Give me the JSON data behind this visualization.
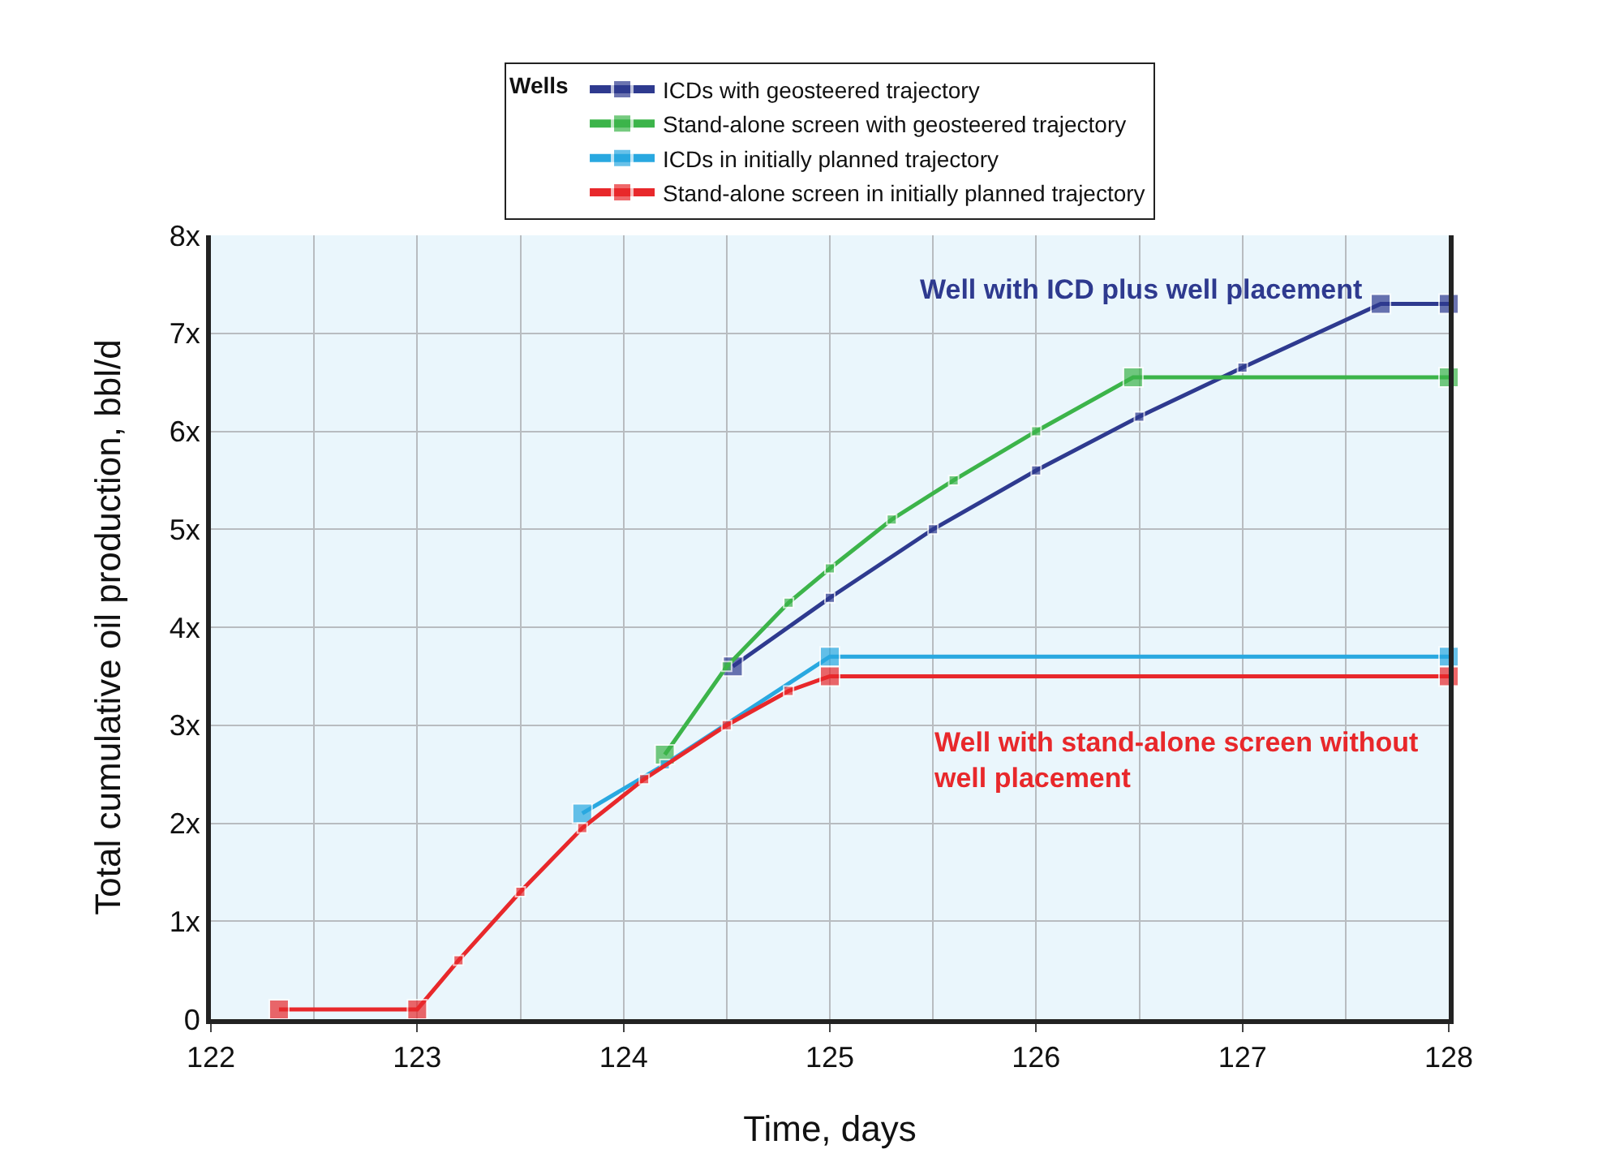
{
  "chart_data": {
    "type": "line",
    "xlabel": "Time, days",
    "ylabel": "Total cumulative oil production, bbl/d",
    "legend_title": "Wells",
    "series": [
      {
        "name": "ICDs with geosteered trajectory",
        "color": "#2e3a8f",
        "x": [
          124.53,
          125,
          125.5,
          126,
          126.5,
          127,
          127.67,
          128
        ],
        "values": [
          3.6,
          4.3,
          5.0,
          5.6,
          6.15,
          6.65,
          7.3,
          7.3
        ]
      },
      {
        "name": "Stand-alone screen with geosteered trajectory",
        "color": "#3cb44a",
        "x": [
          124.2,
          124.5,
          124.8,
          125,
          125.3,
          125.6,
          126,
          126.47,
          128
        ],
        "values": [
          2.7,
          3.6,
          4.25,
          4.6,
          5.1,
          5.5,
          6.0,
          6.55,
          6.55
        ]
      },
      {
        "name": "ICDs in initially planned trajectory",
        "color": "#29a8e0",
        "x": [
          123.8,
          124.2,
          125,
          128
        ],
        "values": [
          2.1,
          2.6,
          3.7,
          3.7
        ]
      },
      {
        "name": "Stand-alone screen in initially planned trajectory",
        "color": "#e8282b",
        "x": [
          122.33,
          123,
          123.2,
          123.5,
          123.8,
          124.1,
          124.5,
          124.8,
          125,
          128
        ],
        "values": [
          0.1,
          0.1,
          0.6,
          1.3,
          1.95,
          2.45,
          3.0,
          3.35,
          3.5,
          3.5
        ]
      }
    ],
    "annotations": [
      "Well with ICD plus well placement",
      "Well with stand-alone screen without well placement"
    ],
    "xlim": [
      122,
      128
    ],
    "xticks": [
      122,
      123,
      124,
      125,
      126,
      127,
      128
    ],
    "ylim": [
      0,
      8
    ],
    "yticks": [
      0,
      {
        "value": 1,
        "label": "1x"
      },
      {
        "value": 2,
        "label": "2x"
      },
      {
        "value": 3,
        "label": "3x"
      },
      {
        "value": 4,
        "label": "4x"
      },
      {
        "value": 5,
        "label": "5x"
      },
      {
        "value": 6,
        "label": "6x"
      },
      {
        "value": 7,
        "label": "7x"
      },
      {
        "value": 8,
        "label": "8x"
      }
    ],
    "grid": true,
    "legend": "top",
    "marker": "square",
    "line_style": "solid"
  }
}
